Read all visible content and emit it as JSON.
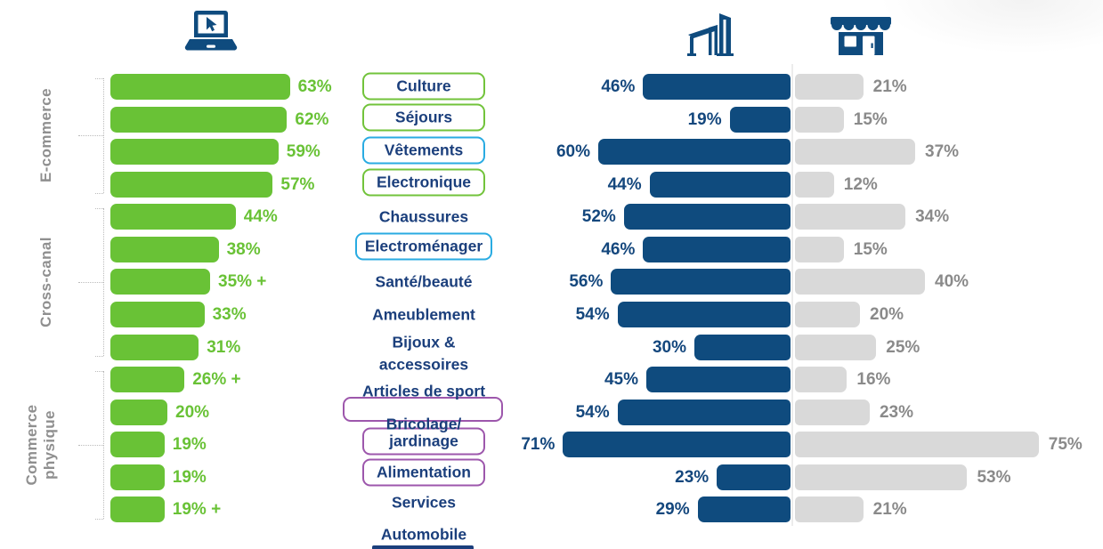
{
  "palette": {
    "green": "#69C236",
    "navy": "#0F4B7E",
    "gray_bar": "#D9D9D9",
    "gray_text": "#8A8A8A",
    "text_navy": "#1B3F7C",
    "group_label_gray": "#8F8F8F",
    "box_green": "#72C33B",
    "box_blue": "#29ABE2",
    "box_purple": "#9D57AC"
  },
  "icons": {
    "left": "laptop-cursor-icon",
    "middle": "commercial-building-icon",
    "right": "storefront-icon"
  },
  "row_groups": [
    {
      "label": "E-commerce",
      "lines": [
        "E-commerce"
      ],
      "first_row": 1,
      "last_row": 4
    },
    {
      "label": "Cross-canal",
      "lines": [
        "Cross-canal"
      ],
      "first_row": 5,
      "last_row": 9
    },
    {
      "label": "Commerce physique",
      "lines": [
        "Commerce",
        "physique"
      ],
      "first_row": 10,
      "last_row": 14
    }
  ],
  "rows": [
    {
      "category": "Culture",
      "box": "green",
      "online_label": "63%",
      "online": 63,
      "retail_label": "46%",
      "retail": 46,
      "store_label": "21%",
      "store": 21
    },
    {
      "category": "Séjours",
      "box": "green",
      "online_label": "62%",
      "online": 62,
      "retail_label": "19%",
      "retail": 19,
      "store_label": "15%",
      "store": 15
    },
    {
      "category": "Vêtements",
      "box": "blue",
      "online_label": "59%",
      "online": 59,
      "retail_label": "60%",
      "retail": 60,
      "store_label": "37%",
      "store": 37
    },
    {
      "category": "Electronique",
      "box": "green",
      "online_label": "57%",
      "online": 57,
      "retail_label": "44%",
      "retail": 44,
      "store_label": "12%",
      "store": 12
    },
    {
      "category": "Chaussures",
      "box": null,
      "online_label": "44%",
      "online": 44,
      "retail_label": "52%",
      "retail": 52,
      "store_label": "34%",
      "store": 34
    },
    {
      "category": "Electroménager",
      "box": "blue",
      "online_label": "38%",
      "online": 38,
      "retail_label": "46%",
      "retail": 46,
      "store_label": "15%",
      "store": 15
    },
    {
      "category": "Santé/beauté",
      "box": null,
      "online_label": "35% +",
      "online": 35,
      "retail_label": "56%",
      "retail": 56,
      "store_label": "40%",
      "store": 40
    },
    {
      "category": "Ameublement",
      "box": null,
      "online_label": "33%",
      "online": 33,
      "retail_label": "54%",
      "retail": 54,
      "store_label": "20%",
      "store": 20
    },
    {
      "category": "Bijoux & accessoires",
      "box": null,
      "category_lines": [
        "Bijoux &",
        "accessoires"
      ],
      "online_label": "31%",
      "online": 31,
      "retail_label": "30%",
      "retail": 30,
      "store_label": "25%",
      "store": 25
    },
    {
      "category": "Articles de sport",
      "box": null,
      "online_label": "26% +",
      "online": 26,
      "retail_label": "45%",
      "retail": 45,
      "store_label": "16%",
      "store": 16
    },
    {
      "category": "Bricolage/jardinage",
      "box": "purple",
      "category_lines": [
        "Bricolage/",
        "jardinage"
      ],
      "online_label": "20%",
      "online": 20,
      "retail_label": "54%",
      "retail": 54,
      "store_label": "23%",
      "store": 23
    },
    {
      "category": "Alimentation",
      "box": "purple",
      "online_label": "19%",
      "online": 19,
      "retail_label": "71%",
      "retail": 71,
      "store_label": "75%",
      "store": 75
    },
    {
      "category": "Services",
      "box": null,
      "online_label": "19%",
      "online": 19,
      "retail_label": "23%",
      "retail": 23,
      "store_label": "53%",
      "store": 53
    },
    {
      "category": "Automobile",
      "box": null,
      "online_label": "19% +",
      "online": 19,
      "retail_label": "29%",
      "retail": 29,
      "store_label": "21%",
      "store": 21
    }
  ],
  "chart_data": {
    "type": "bar",
    "orientation": "horizontal",
    "title": "",
    "unit": "%",
    "categories": [
      "Culture",
      "Séjours",
      "Vêtements",
      "Electronique",
      "Chaussures",
      "Electroménager",
      "Santé/beauté",
      "Ameublement",
      "Bijoux & accessoires",
      "Articles de sport",
      "Bricolage/jardinage",
      "Alimentation",
      "Services",
      "Automobile"
    ],
    "series": [
      {
        "name": "online (laptop-cursor-icon)",
        "color": "#69C236",
        "values": [
          63,
          62,
          59,
          57,
          44,
          38,
          35,
          33,
          31,
          26,
          20,
          19,
          19,
          19
        ],
        "labels": [
          "63%",
          "62%",
          "59%",
          "57%",
          "44%",
          "38%",
          "35% +",
          "33%",
          "31%",
          "26% +",
          "20%",
          "19%",
          "19%",
          "19% +"
        ]
      },
      {
        "name": "commercial-building-icon",
        "color": "#0F4B7E",
        "values": [
          46,
          19,
          60,
          44,
          52,
          46,
          56,
          54,
          30,
          45,
          54,
          71,
          23,
          29
        ],
        "labels": [
          "46%",
          "19%",
          "60%",
          "44%",
          "52%",
          "46%",
          "56%",
          "54%",
          "30%",
          "45%",
          "54%",
          "71%",
          "23%",
          "29%"
        ]
      },
      {
        "name": "storefront-icon",
        "color": "#D9D9D9",
        "values": [
          21,
          15,
          37,
          12,
          34,
          15,
          40,
          20,
          25,
          16,
          23,
          75,
          53,
          21
        ],
        "labels": [
          "21%",
          "15%",
          "37%",
          "12%",
          "34%",
          "15%",
          "40%",
          "20%",
          "25%",
          "16%",
          "23%",
          "75%",
          "53%",
          "21%"
        ]
      }
    ],
    "row_groups": [
      {
        "label": "E-commerce",
        "rows": [
          1,
          4
        ]
      },
      {
        "label": "Cross-canal",
        "rows": [
          5,
          9
        ]
      },
      {
        "label": "Commerce physique",
        "rows": [
          10,
          14
        ]
      }
    ],
    "highlighted_categories": {
      "green": [
        "Culture",
        "Séjours",
        "Electronique"
      ],
      "blue": [
        "Vêtements",
        "Electroménager"
      ],
      "purple": [
        "Bricolage/jardinage",
        "Alimentation"
      ]
    },
    "legend_position": "icons-top",
    "grid": false
  }
}
